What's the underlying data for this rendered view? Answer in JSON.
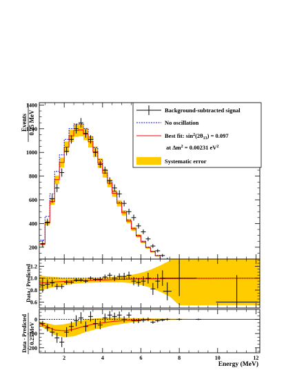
{
  "chart_data": [
    {
      "type": "line",
      "panel": "top",
      "ylabel_line1": "Events",
      "ylabel_line2": "0.25 MeV",
      "xlim": [
        0.7,
        12.2
      ],
      "ylim": [
        100,
        1420
      ],
      "yticks": [
        "200",
        "400",
        "600",
        "800",
        "1000",
        "1200",
        "1400"
      ],
      "ytick_values": [
        200,
        400,
        600,
        800,
        1000,
        1200,
        1400
      ],
      "legend_placement": "top-right",
      "x": [
        0.875,
        1.125,
        1.375,
        1.625,
        1.875,
        2.125,
        2.375,
        2.625,
        2.875,
        3.125,
        3.375,
        3.625,
        3.875,
        4.125,
        4.375,
        4.625,
        4.875,
        5.125,
        5.375,
        5.625,
        5.875,
        6.125,
        6.375,
        6.625,
        6.875,
        7.125,
        7.375,
        7.625,
        7.875,
        8.5,
        9.5,
        11.0
      ],
      "series": [
        {
          "name": "Background-subtracted signal",
          "style": "points-with-errorbars",
          "values": [
            230,
            410,
            610,
            700,
            830,
            1010,
            1110,
            1200,
            1250,
            1160,
            1110,
            1000,
            900,
            850,
            760,
            700,
            650,
            570,
            500,
            450,
            380,
            330,
            270,
            210,
            170,
            130,
            100,
            80,
            60,
            40,
            25,
            12
          ],
          "errors": [
            30,
            30,
            35,
            35,
            35,
            35,
            35,
            40,
            40,
            35,
            35,
            35,
            30,
            30,
            30,
            30,
            30,
            25,
            25,
            25,
            22,
            20,
            18,
            16,
            14,
            13,
            11,
            10,
            9,
            8,
            6,
            5
          ]
        },
        {
          "name": "No oscillation",
          "style": "dashed-step",
          "color": "#0000ee",
          "values": [
            260,
            460,
            650,
            840,
            980,
            1110,
            1200,
            1240,
            1240,
            1200,
            1130,
            1040,
            940,
            850,
            760,
            670,
            580,
            500,
            430,
            360,
            300,
            250,
            200,
            165,
            130,
            100,
            78,
            60,
            45,
            30,
            18,
            8
          ]
        },
        {
          "name_prefix": "Best fit: sin",
          "name_exponent": "2",
          "name_middle": "(2θ",
          "name_subscript": "13",
          "name_suffix": ") = 0.097",
          "style": "solid-step",
          "color": "#ee0000",
          "values": [
            225,
            405,
            585,
            770,
            915,
            1045,
            1140,
            1185,
            1190,
            1155,
            1090,
            1005,
            910,
            825,
            740,
            655,
            570,
            490,
            420,
            355,
            295,
            245,
            197,
            162,
            128,
            98,
            77,
            59,
            44,
            30,
            18,
            8
          ]
        }
      ],
      "band": {
        "name": "Systematic error",
        "color": "#ffcc00",
        "relative_width": 0.045
      },
      "fit_annotation_prefix": "at Δm",
      "fit_annotation_exponent1": "2",
      "fit_annotation_middle": " = 0.00231 eV",
      "fit_annotation_exponent2": "2"
    },
    {
      "type": "line",
      "panel": "middle",
      "ylabel": "Data / Predicted",
      "ylim": [
        0.5,
        1.32
      ],
      "yticks": [
        "0.6",
        "0.8",
        "1.0",
        "1.2"
      ],
      "ytick_values": [
        0.6,
        0.8,
        1.0,
        1.2
      ],
      "x": [
        0.875,
        1.125,
        1.375,
        1.625,
        1.875,
        2.125,
        2.375,
        2.625,
        2.875,
        3.125,
        3.375,
        3.625,
        3.875,
        4.125,
        4.375,
        4.625,
        4.875,
        5.125,
        5.375,
        5.625,
        5.875,
        6.125,
        6.375,
        6.625,
        6.875,
        7.125,
        7.375,
        8.0,
        11.0
      ],
      "values": [
        0.88,
        0.9,
        0.92,
        0.86,
        0.86,
        0.93,
        0.93,
        0.97,
        0.97,
        0.95,
        1.0,
        0.98,
        0.98,
        1.02,
        1.05,
        1.0,
        1.03,
        1.03,
        1.05,
        0.95,
        0.93,
        0.95,
        1.0,
        0.82,
        0.95,
        1.0,
        0.78,
        1.0,
        0.6
      ],
      "errors": [
        0.12,
        0.08,
        0.06,
        0.05,
        0.04,
        0.04,
        0.03,
        0.03,
        0.03,
        0.03,
        0.03,
        0.03,
        0.04,
        0.04,
        0.04,
        0.05,
        0.05,
        0.06,
        0.06,
        0.07,
        0.07,
        0.08,
        0.09,
        0.1,
        0.12,
        0.13,
        0.15,
        0.3,
        0.45
      ],
      "no_osc_reference": 1.0,
      "bestfit_curve": [
        [
          0.75,
          0.92
        ],
        [
          1.5,
          0.935
        ],
        [
          2.5,
          0.955
        ],
        [
          3.5,
          0.965
        ],
        [
          4.5,
          0.975
        ],
        [
          5.5,
          0.985
        ],
        [
          6.5,
          0.99
        ],
        [
          8.0,
          0.995
        ],
        [
          12.0,
          1.0
        ]
      ],
      "band_halfwidth": [
        [
          0.75,
          0.12
        ],
        [
          2.0,
          0.06
        ],
        [
          3.0,
          0.04
        ],
        [
          4.0,
          0.04
        ],
        [
          5.0,
          0.05
        ],
        [
          5.5,
          0.07
        ],
        [
          6.0,
          0.1
        ],
        [
          6.5,
          0.15
        ],
        [
          7.0,
          0.22
        ],
        [
          7.5,
          0.3
        ],
        [
          8.0,
          0.45
        ],
        [
          12.2,
          0.45
        ]
      ]
    },
    {
      "type": "line",
      "panel": "bottom",
      "ylabel_line1": "Data - Predicted",
      "ylabel_line2": "0.25 MeV",
      "xlabel": "Energy (MeV)",
      "xlim": [
        0.7,
        12.2
      ],
      "ylim": [
        -235,
        70
      ],
      "yticks": [
        "-200",
        "-100",
        "0"
      ],
      "ytick_values": [
        -200,
        -100,
        0
      ],
      "xticks": [
        "2",
        "4",
        "6",
        "8",
        "10",
        "12"
      ],
      "xtick_values": [
        2,
        4,
        6,
        8,
        10,
        12
      ],
      "x": [
        0.875,
        1.125,
        1.375,
        1.625,
        1.875,
        2.125,
        2.375,
        2.625,
        2.875,
        3.125,
        3.375,
        3.625,
        3.875,
        4.125,
        4.375,
        4.625,
        4.875,
        5.125,
        5.375,
        5.625,
        5.875,
        6.125,
        6.375,
        6.625,
        6.875,
        7.125,
        7.375,
        8.0,
        9.0
      ],
      "values": [
        -30,
        -60,
        -90,
        -130,
        -160,
        -90,
        -50,
        -10,
        10,
        -50,
        20,
        -30,
        -40,
        10,
        30,
        20,
        30,
        0,
        30,
        -10,
        -10,
        -5,
        0,
        -20,
        -10,
        -5,
        0,
        0,
        0
      ],
      "errors": [
        20,
        25,
        30,
        35,
        35,
        35,
        35,
        38,
        40,
        35,
        35,
        33,
        30,
        30,
        28,
        27,
        25,
        22,
        20,
        19,
        17,
        15,
        13,
        11,
        10,
        9,
        8,
        7,
        5
      ],
      "bestfit_curve": [
        [
          0.75,
          -30
        ],
        [
          1.5,
          -75
        ],
        [
          2.0,
          -80
        ],
        [
          2.5,
          -70
        ],
        [
          3.0,
          -50
        ],
        [
          3.5,
          -35
        ],
        [
          4.0,
          -25
        ],
        [
          4.5,
          -15
        ],
        [
          5.0,
          -10
        ],
        [
          6.0,
          -3
        ],
        [
          7.0,
          0
        ],
        [
          12.0,
          0
        ]
      ],
      "band_halfwidth": [
        [
          0.75,
          15
        ],
        [
          1.5,
          35
        ],
        [
          2.0,
          45
        ],
        [
          2.5,
          50
        ],
        [
          3.0,
          45
        ],
        [
          3.5,
          40
        ],
        [
          4.0,
          35
        ],
        [
          4.5,
          28
        ],
        [
          5.0,
          22
        ],
        [
          5.5,
          15
        ],
        [
          6.0,
          10
        ],
        [
          6.5,
          7
        ],
        [
          7.0,
          5
        ],
        [
          8.0,
          3
        ],
        [
          9.0,
          2
        ],
        [
          12.2,
          1
        ]
      ]
    }
  ]
}
